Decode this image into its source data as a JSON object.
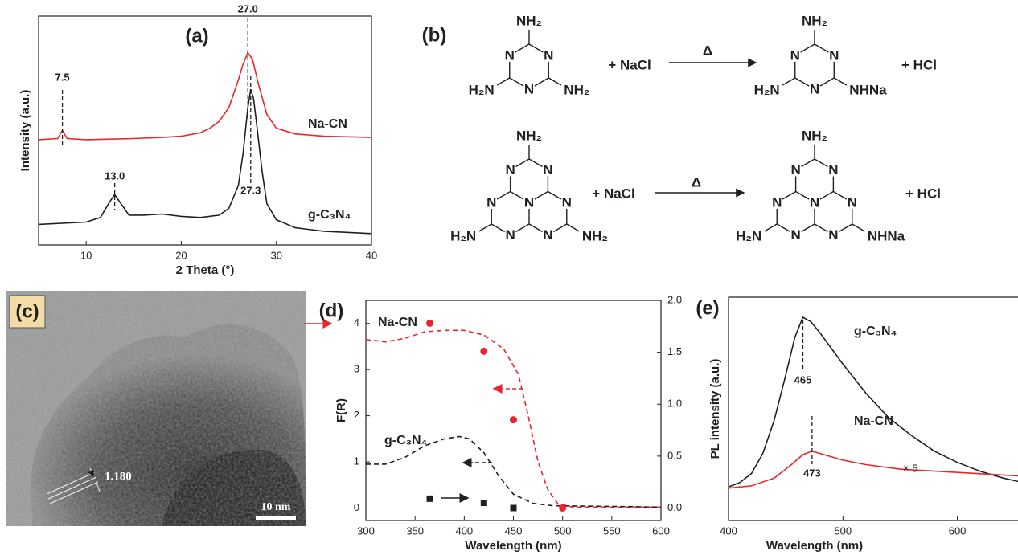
{
  "chart_data": [
    {
      "type": "line",
      "label": "(a)",
      "xlabel": "2 Theta (°)",
      "ylabel": "Intensity (a.u.)",
      "xlim": [
        5,
        40
      ],
      "xticks": [
        10,
        20,
        30,
        40
      ],
      "ylim": [
        0,
        100
      ],
      "series": [
        {
          "name": "Na-CN",
          "color": "#e8262c",
          "x": [
            5,
            7,
            7.5,
            8,
            10,
            15,
            18,
            20,
            22,
            23,
            24,
            25,
            26,
            26.5,
            27,
            27.5,
            28,
            29,
            30,
            32,
            35,
            40
          ],
          "values": [
            46,
            46.5,
            50,
            46.5,
            46,
            46.5,
            47,
            47.5,
            49,
            51,
            54,
            60,
            72,
            79,
            84,
            81,
            72,
            57,
            51,
            48.5,
            47.5,
            47
          ]
        },
        {
          "name": "g-C₃N₄",
          "color": "#231f20",
          "x": [
            5,
            10,
            11.5,
            12.5,
            13,
            13.5,
            14.5,
            16,
            18,
            20,
            22,
            24,
            25,
            26,
            26.5,
            27,
            27.3,
            27.6,
            28,
            28.5,
            29,
            30,
            32,
            35,
            40
          ],
          "values": [
            9,
            10,
            12,
            19,
            22,
            19,
            13,
            13,
            13.5,
            12.5,
            12,
            13,
            16,
            26,
            40,
            60,
            68,
            64,
            50,
            32,
            18,
            11,
            7.5,
            6,
            5
          ]
        }
      ],
      "annotations": [
        {
          "label": "7.5",
          "x": 7.5
        },
        {
          "label": "13.0",
          "x": 13
        },
        {
          "label": "27.0",
          "x": 27
        },
        {
          "label": "27.3",
          "x": 27.3
        }
      ]
    },
    {
      "type": "line",
      "label": "(d)",
      "xlabel": "Wavelength (nm)",
      "ylabel": "F(R)",
      "xlim": [
        300,
        600
      ],
      "xticks": [
        300,
        350,
        400,
        450,
        500,
        550,
        600
      ],
      "ylim": [
        -0.27,
        4.5
      ],
      "yticks": [
        0,
        1,
        2,
        3,
        4
      ],
      "y2lim": [
        -0.12,
        2.0
      ],
      "y2ticks": [
        {
          "value": 0,
          "label": "0.0"
        },
        {
          "value": 0.5,
          "label": "0.5"
        },
        {
          "value": 1,
          "label": "1.0"
        },
        {
          "value": 1.5,
          "label": "1.5"
        },
        {
          "value": 2,
          "label": "2.0"
        }
      ],
      "series": [
        {
          "name": "Na-CN",
          "color": "#e8262c",
          "style": "dashed",
          "x": [
            300,
            320,
            340,
            360,
            380,
            400,
            420,
            440,
            455,
            465,
            475,
            485,
            495,
            510,
            600
          ],
          "values": [
            3.65,
            3.6,
            3.68,
            3.82,
            3.85,
            3.85,
            3.75,
            3.45,
            2.9,
            2.0,
            1.0,
            0.4,
            0.1,
            0.02,
            0.02
          ]
        },
        {
          "name": "g-C₃N₄",
          "color": "#231f20",
          "style": "dashed",
          "x": [
            300,
            320,
            340,
            360,
            380,
            395,
            405,
            420,
            435,
            450,
            470,
            490,
            600
          ],
          "values": [
            0.95,
            0.95,
            1.1,
            1.35,
            1.5,
            1.55,
            1.5,
            1.2,
            0.7,
            0.3,
            0.1,
            0.05,
            0.02
          ]
        },
        {
          "color": "#231f20",
          "marker": "square",
          "axis": "y2",
          "x": [
            365,
            420,
            450
          ],
          "values": [
            0.09,
            0.05,
            0.0
          ]
        },
        {
          "color": "#e8262c",
          "marker": "circle",
          "axis": "y2",
          "x": [
            365,
            420,
            450,
            500
          ],
          "values": [
            1.78,
            1.51,
            0.85,
            0
          ]
        }
      ]
    },
    {
      "type": "line",
      "label": "(e)",
      "xlabel": "Wavelength (nm)",
      "ylabel": "PL intensity (a.u.)",
      "xlim": [
        400,
        653
      ],
      "xticks": [
        400,
        500,
        600
      ],
      "ylim": [
        0,
        100
      ],
      "series": [
        {
          "name": "g-C₃N₄",
          "color": "#231f20",
          "x": [
            400,
            410,
            420,
            430,
            440,
            450,
            458,
            465,
            472,
            480,
            500,
            520,
            540,
            560,
            580,
            600,
            620,
            640,
            653
          ],
          "values": [
            15,
            17,
            21,
            30,
            45,
            65,
            82,
            91,
            89,
            84,
            70,
            57,
            46,
            38,
            31,
            26,
            22,
            19,
            17.5
          ]
        },
        {
          "name": "Na-CN",
          "color": "#e8262c",
          "x": [
            400,
            420,
            440,
            455,
            465,
            473,
            480,
            500,
            520,
            550,
            600,
            653
          ],
          "values": [
            14.5,
            15.5,
            19,
            25,
            29.5,
            31,
            30,
            27,
            25,
            23,
            21.5,
            20
          ]
        }
      ],
      "annotations": [
        {
          "label": "465",
          "x": 465
        },
        {
          "label": "473",
          "x": 473
        }
      ],
      "notes": [
        "× 5"
      ]
    }
  ],
  "scheme": {
    "label": "(b)",
    "reactions": [
      {
        "reactant": {
          "ring_atom": "N",
          "groups": [
            "NH₂",
            "H₂N",
            "NH₂"
          ]
        },
        "reagent": "+ NaCl",
        "condition": "Δ",
        "product": {
          "ring_atom": "N",
          "groups": [
            "NH₂",
            "H₂N",
            "NHNa"
          ]
        },
        "byproduct": "+ HCl"
      },
      {
        "reactant": {
          "ring_atom": "N",
          "groups": [
            "NH₂",
            "H₂N",
            "NH₂"
          ]
        },
        "reagent": "+ NaCl",
        "condition": "Δ",
        "product": {
          "ring_atom": "N",
          "groups": [
            "NH₂",
            "H₂N",
            "NHNa"
          ]
        },
        "byproduct": "+ HCl"
      }
    ]
  },
  "tem": {
    "label": "(c)",
    "spacing": "1.180",
    "scale_bar": "10 nm"
  }
}
